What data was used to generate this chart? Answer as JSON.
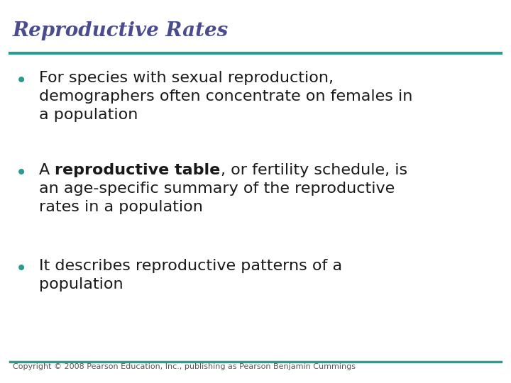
{
  "title": "Reproductive Rates",
  "title_color": "#4b4b8f",
  "title_fontstyle": "italic",
  "title_fontsize": 20,
  "line_color": "#2a9d8f",
  "background_color": "#ffffff",
  "bullet_color": "#2a9d8f",
  "text_color": "#1a1a1a",
  "bullet1_line1": "For species with sexual reproduction,",
  "bullet1_line2": "demographers often concentrate on females in",
  "bullet1_line3": "a population",
  "bullet2_pre": "A ",
  "bullet2_bold": "reproductive table",
  "bullet2_post": ", or fertility schedule, is",
  "bullet2_line2": "an age-specific summary of the reproductive",
  "bullet2_line3": "rates in a population",
  "bullet3_line1": "It describes reproductive patterns of a",
  "bullet3_line2": "population",
  "copyright": "Copyright © 2008 Pearson Education, Inc., publishing as Pearson Benjamin Cummings",
  "text_fontsize": 16,
  "copyright_fontsize": 8
}
